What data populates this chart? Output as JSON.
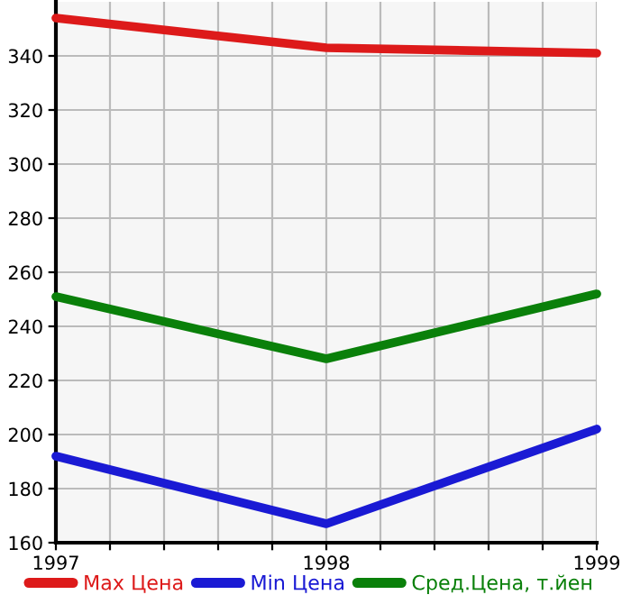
{
  "chart_data": {
    "type": "line",
    "x": [
      1997,
      1998,
      1999
    ],
    "series": [
      {
        "name": "Max Цена",
        "color": "#dd1a1a",
        "values": [
          354,
          343,
          341
        ]
      },
      {
        "name": "Min Цена",
        "color": "#1a1ad4",
        "values": [
          192,
          167,
          202
        ]
      },
      {
        "name": "Сред.Цена, т.йен",
        "color": "#0a800a",
        "values": [
          251,
          228,
          252
        ]
      }
    ],
    "xlim": [
      1997,
      1999
    ],
    "xticks": [
      1997,
      {
        "value": 1997.2,
        "label": null
      },
      {
        "value": 1997.4,
        "label": null
      },
      {
        "value": 1997.6,
        "label": null
      },
      {
        "value": 1997.8,
        "label": null
      },
      1998,
      {
        "value": 1998.2,
        "label": null
      },
      {
        "value": 1998.4,
        "label": null
      },
      {
        "value": 1998.6,
        "label": null
      },
      {
        "value": 1998.8,
        "label": null
      },
      1999
    ],
    "ylim": [
      160,
      360
    ],
    "yticks": [
      160,
      180,
      200,
      220,
      240,
      260,
      280,
      300,
      320,
      340
    ],
    "grid": true,
    "legend": "bottom",
    "marker": "none",
    "line_style": "solid"
  }
}
